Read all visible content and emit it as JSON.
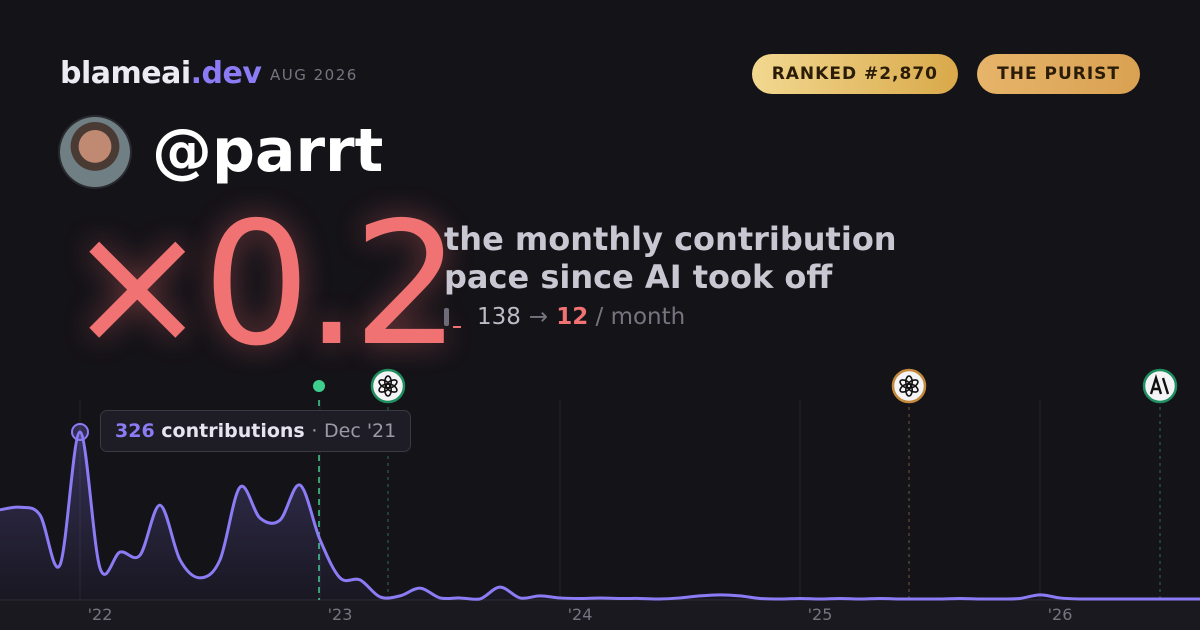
{
  "header": {
    "brand": "blameai",
    "brand_suffix": ".dev",
    "date": "AUG 2026",
    "badges": [
      "RANKED #2,870",
      "THE PURIST"
    ]
  },
  "profile": {
    "handle": "@parrt"
  },
  "headline": {
    "multiplier": "×0.2",
    "description": [
      "the monthly contribution",
      "pace since AI took off"
    ],
    "before": "138",
    "arrow": "→",
    "after": "12",
    "unit": "/ month"
  },
  "tooltip": {
    "unit": "contributions",
    "separator": "·",
    "date": "Dec '21"
  },
  "chart_data": {
    "type": "area",
    "color": "#8b7cf6",
    "categories": [
      null,
      null,
      null,
      null,
      null,
      "'22",
      null,
      null,
      null,
      null,
      null,
      null,
      null,
      null,
      null,
      null,
      null,
      "'23",
      null,
      null,
      null,
      null,
      null,
      null,
      null,
      null,
      null,
      null,
      null,
      "'24",
      null,
      null,
      null,
      null,
      null,
      null,
      null,
      null,
      null,
      null,
      null,
      "'25",
      null,
      null,
      null,
      null,
      null,
      null,
      null,
      null,
      null,
      null,
      null,
      "'26",
      null,
      null,
      null,
      null,
      null,
      null,
      null
    ],
    "values": [
      175,
      180,
      165,
      68,
      326,
      62,
      93,
      87,
      184,
      78,
      43,
      78,
      219,
      159,
      155,
      223,
      117,
      43,
      39,
      6,
      8,
      23,
      4,
      4,
      2,
      25,
      4,
      8,
      4,
      3,
      4,
      3,
      3,
      2,
      4,
      8,
      10,
      8,
      3,
      2,
      3,
      2,
      3,
      2,
      3,
      2,
      2,
      2,
      3,
      2,
      2,
      3,
      10,
      4,
      2,
      2,
      2,
      2,
      2,
      2,
      2
    ]
  }
}
